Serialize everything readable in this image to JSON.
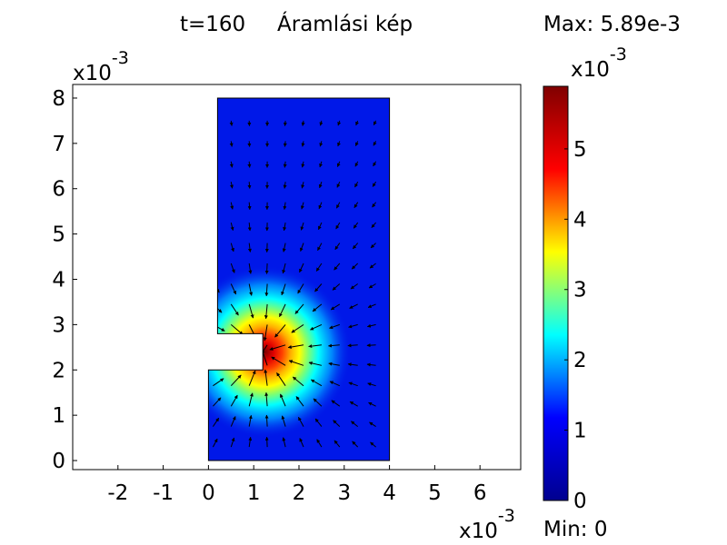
{
  "chart_data": {
    "type": "heatmap",
    "title_time": "t=160",
    "title": "Áramlási kép",
    "max_label": "Max: 5.89e-3",
    "min_label": "Min: 0",
    "x_multiplier": {
      "base": "x10",
      "exp": "-3"
    },
    "y_multiplier": {
      "base": "x10",
      "exp": "-3"
    },
    "colorbar_multiplier": {
      "base": "x10",
      "exp": "-3"
    },
    "xlim": [
      -3,
      6.9
    ],
    "ylim": [
      -0.2,
      8.3
    ],
    "x_ticks": [
      -2,
      -1,
      0,
      1,
      2,
      3,
      4,
      5,
      6
    ],
    "y_ticks": [
      0,
      1,
      2,
      3,
      4,
      5,
      6,
      7,
      8
    ],
    "colorbar": {
      "range": [
        0,
        5.89
      ],
      "ticks": [
        0,
        1,
        2,
        3,
        4,
        5
      ],
      "colormap": [
        "#00008f",
        "#0000ff",
        "#00ffff",
        "#ffff00",
        "#ff0000",
        "#800000"
      ]
    },
    "domain_outline": [
      [
        0,
        0
      ],
      [
        0,
        2
      ],
      [
        1.2,
        2
      ],
      [
        1.2,
        2.8
      ],
      [
        0.2,
        2.8
      ],
      [
        0.2,
        8
      ],
      [
        4,
        8
      ],
      [
        4,
        0
      ]
    ],
    "field_peak": {
      "x": 1.25,
      "y": 2.4,
      "value": 5.89
    },
    "grid": false
  }
}
